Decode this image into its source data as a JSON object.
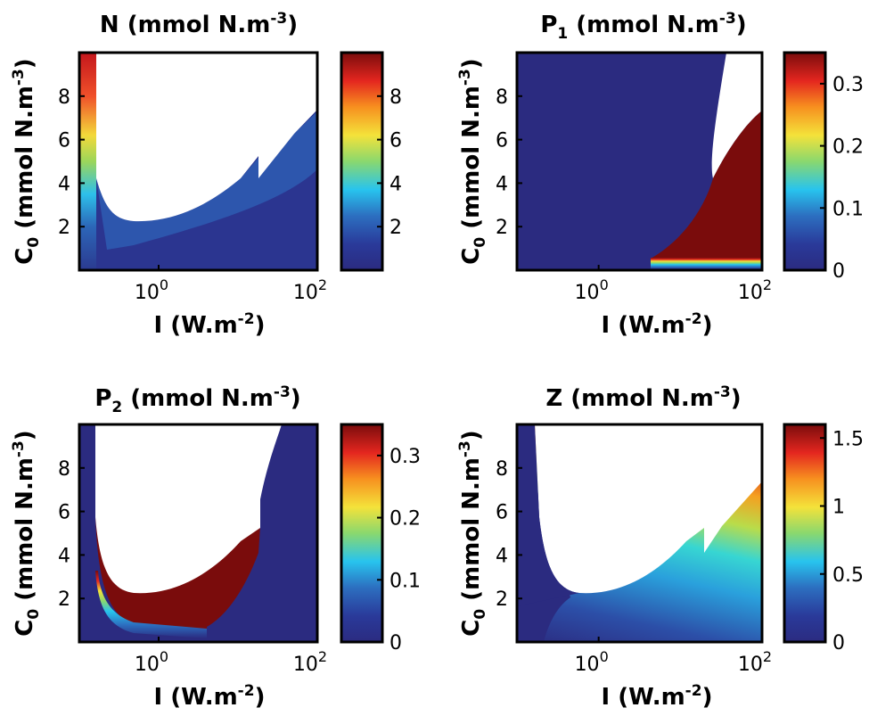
{
  "chart_data": [
    {
      "type": "heatmap",
      "title": "N (mmol N.m",
      "title_sup": "-3",
      "title_tail": ")",
      "xlabel": "I (W.m",
      "xlabel_sup": "-2",
      "xlabel_tail": ")",
      "ylabel": "C",
      "ylabel_sub": "0",
      "ylabel_rest": " (mmol N.m",
      "ylabel_sup": "-3",
      "ylabel_tail": ")",
      "x_scale": "log",
      "x_ticks": [
        {
          "base": "10",
          "exp": "0"
        },
        {
          "base": "10",
          "exp": "2"
        }
      ],
      "x_tick_values": [
        1,
        100
      ],
      "xlim": [
        0.1,
        100
      ],
      "y_ticks": [
        "2",
        "4",
        "6",
        "8"
      ],
      "y_tick_values": [
        2,
        4,
        6,
        8
      ],
      "ylim": [
        0,
        10
      ],
      "colorbar": {
        "ticks": [
          "2",
          "4",
          "6",
          "8"
        ],
        "values": [
          2,
          4,
          6,
          8
        ],
        "range": [
          0,
          10
        ]
      },
      "colormap": "jet",
      "grid": false
    },
    {
      "type": "heatmap",
      "title": "P",
      "title_sub": "1",
      "title_tail": " (mmol N.m",
      "title_sup": "-3",
      "title_end": ")",
      "xlabel": "I (W.m",
      "xlabel_sup": "-2",
      "xlabel_tail": ")",
      "ylabel": "C",
      "ylabel_sub": "0",
      "ylabel_rest": " (mmol N.m",
      "ylabel_sup": "-3",
      "ylabel_tail": ")",
      "x_scale": "log",
      "x_ticks": [
        {
          "base": "10",
          "exp": "0"
        },
        {
          "base": "10",
          "exp": "2"
        }
      ],
      "x_tick_values": [
        1,
        100
      ],
      "xlim": [
        0.1,
        100
      ],
      "y_ticks": [
        "2",
        "4",
        "6",
        "8"
      ],
      "y_tick_values": [
        2,
        4,
        6,
        8
      ],
      "ylim": [
        0,
        10
      ],
      "colorbar": {
        "ticks": [
          "0",
          "0.1",
          "0.2",
          "0.3"
        ],
        "values": [
          0,
          0.1,
          0.2,
          0.3
        ],
        "range": [
          0,
          0.35
        ]
      },
      "colormap": "jet",
      "grid": false
    },
    {
      "type": "heatmap",
      "title": "P",
      "title_sub": "2",
      "title_tail": " (mmol N.m",
      "title_sup": "-3",
      "title_end": ")",
      "xlabel": "I (W.m",
      "xlabel_sup": "-2",
      "xlabel_tail": ")",
      "ylabel": "C",
      "ylabel_sub": "0",
      "ylabel_rest": " (mmol N.m",
      "ylabel_sup": "-3",
      "ylabel_tail": ")",
      "x_scale": "log",
      "x_ticks": [
        {
          "base": "10",
          "exp": "0"
        },
        {
          "base": "10",
          "exp": "2"
        }
      ],
      "x_tick_values": [
        1,
        100
      ],
      "xlim": [
        0.1,
        100
      ],
      "y_ticks": [
        "2",
        "4",
        "6",
        "8"
      ],
      "y_tick_values": [
        2,
        4,
        6,
        8
      ],
      "ylim": [
        0,
        10
      ],
      "colorbar": {
        "ticks": [
          "0",
          "0.1",
          "0.2",
          "0.3"
        ],
        "values": [
          0,
          0.1,
          0.2,
          0.3
        ],
        "range": [
          0,
          0.35
        ]
      },
      "colormap": "jet",
      "grid": false
    },
    {
      "type": "heatmap",
      "title": "Z (mmol N.m",
      "title_sup": "-3",
      "title_tail": ")",
      "xlabel": "I (W.m",
      "xlabel_sup": "-2",
      "xlabel_tail": ")",
      "ylabel": "C",
      "ylabel_sub": "0",
      "ylabel_rest": " (mmol N.m",
      "ylabel_sup": "-3",
      "ylabel_tail": ")",
      "x_scale": "log",
      "x_ticks": [
        {
          "base": "10",
          "exp": "0"
        },
        {
          "base": "10",
          "exp": "2"
        }
      ],
      "x_tick_values": [
        1,
        100
      ],
      "xlim": [
        0.1,
        100
      ],
      "y_ticks": [
        "2",
        "4",
        "6",
        "8"
      ],
      "y_tick_values": [
        2,
        4,
        6,
        8
      ],
      "ylim": [
        0,
        10
      ],
      "colorbar": {
        "ticks": [
          "0",
          "0.5",
          "1",
          "1.5"
        ],
        "values": [
          0,
          0.5,
          1,
          1.5
        ],
        "range": [
          0,
          1.6
        ]
      },
      "colormap": "jet",
      "grid": false
    }
  ],
  "colors": {
    "low": "#2b2b80",
    "high": "#7a0c0c",
    "jet_stops": [
      "#000080",
      "#0000ff",
      "#00c8ff",
      "#7dff7d",
      "#ffd400",
      "#ff2a00",
      "#800000"
    ]
  }
}
